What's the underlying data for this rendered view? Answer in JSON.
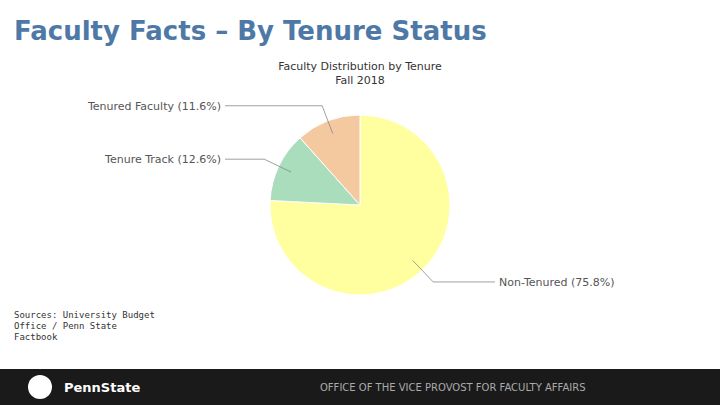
{
  "chart_data": {
    "type": "pie",
    "title": "Faculty Facts – By Tenure Status",
    "subtitle": [
      "Faculty Distribution by Tenure",
      "Fall 2018"
    ],
    "values": [
      75.8,
      12.6,
      11.6
    ],
    "value_labels": [
      "Non-Tenured (75.8%)",
      "Tenure Track (12.6%)",
      "Tenured Faculty (11.6%)"
    ],
    "colors": [
      "#FFFFA0",
      "#AADDBB",
      "#F5C9A0"
    ],
    "data_labels": true,
    "annotations": [
      "Sources: University Budget\nOffice / Penn State\nFactbook",
      "PennState",
      "OFFICE OF THE VICE PROVOST FOR FACULTY AFFAIRS"
    ]
  }
}
